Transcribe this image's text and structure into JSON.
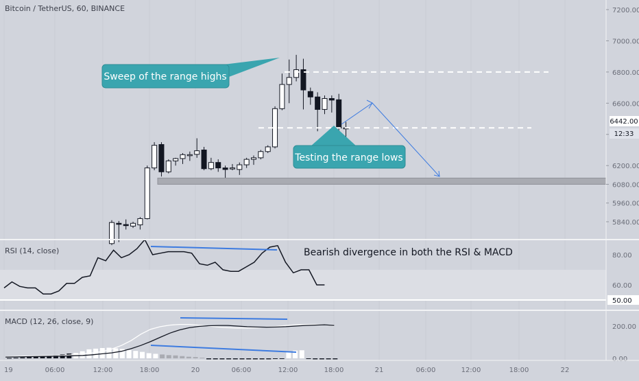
{
  "chart_data": [
    {
      "type": "candlestick",
      "title": "Bitcoin / TetherUS, 60, BINANCE",
      "ylim": [
        5700,
        7300
      ],
      "y_ticks": [
        "7200.00",
        "7000.00",
        "6800.00",
        "6600.00",
        "6400.00",
        "6200.00",
        "6080.00",
        "5960.00",
        "5840.00"
      ],
      "y_tick_values": [
        7200,
        7000,
        6800,
        6600,
        6400,
        6200,
        6080,
        5960,
        5840
      ],
      "x_ticks": [
        "19",
        "06:00",
        "12:00",
        "18:00",
        "20",
        "06:00",
        "12:00",
        "18:00",
        "21",
        "06:00",
        "12:00",
        "18:00",
        "22"
      ],
      "price_label": "6442.00",
      "countdown_label": "12:33",
      "candles": [
        {
          "o": 5700,
          "h": 5850,
          "l": 5690,
          "c": 5835
        },
        {
          "o": 5830,
          "h": 5845,
          "l": 5710,
          "c": 5825
        },
        {
          "o": 5822,
          "h": 5855,
          "l": 5790,
          "c": 5815
        },
        {
          "o": 5812,
          "h": 5840,
          "l": 5800,
          "c": 5830
        },
        {
          "o": 5820,
          "h": 5870,
          "l": 5790,
          "c": 5860
        },
        {
          "o": 5860,
          "h": 6200,
          "l": 5855,
          "c": 6185
        },
        {
          "o": 6185,
          "h": 6350,
          "l": 6170,
          "c": 6330
        },
        {
          "o": 6335,
          "h": 6350,
          "l": 6130,
          "c": 6160
        },
        {
          "o": 6160,
          "h": 6240,
          "l": 6150,
          "c": 6230
        },
        {
          "o": 6230,
          "h": 6250,
          "l": 6200,
          "c": 6245
        },
        {
          "o": 6245,
          "h": 6280,
          "l": 6210,
          "c": 6270
        },
        {
          "o": 6265,
          "h": 6290,
          "l": 6230,
          "c": 6270
        },
        {
          "o": 6272,
          "h": 6375,
          "l": 6250,
          "c": 6295
        },
        {
          "o": 6300,
          "h": 6320,
          "l": 6170,
          "c": 6180
        },
        {
          "o": 6180,
          "h": 6250,
          "l": 6170,
          "c": 6220
        },
        {
          "o": 6220,
          "h": 6240,
          "l": 6160,
          "c": 6185
        },
        {
          "o": 6185,
          "h": 6200,
          "l": 6120,
          "c": 6175
        },
        {
          "o": 6180,
          "h": 6210,
          "l": 6170,
          "c": 6185
        },
        {
          "o": 6175,
          "h": 6220,
          "l": 6140,
          "c": 6205
        },
        {
          "o": 6205,
          "h": 6250,
          "l": 6185,
          "c": 6240
        },
        {
          "o": 6240,
          "h": 6265,
          "l": 6205,
          "c": 6250
        },
        {
          "o": 6250,
          "h": 6300,
          "l": 6240,
          "c": 6290
        },
        {
          "o": 6290,
          "h": 6330,
          "l": 6280,
          "c": 6320
        },
        {
          "o": 6320,
          "h": 6580,
          "l": 6310,
          "c": 6565
        },
        {
          "o": 6565,
          "h": 6790,
          "l": 6555,
          "c": 6720
        },
        {
          "o": 6720,
          "h": 6880,
          "l": 6600,
          "c": 6765
        },
        {
          "o": 6765,
          "h": 6910,
          "l": 6740,
          "c": 6815
        },
        {
          "o": 6815,
          "h": 6885,
          "l": 6560,
          "c": 6685
        },
        {
          "o": 6675,
          "h": 6700,
          "l": 6590,
          "c": 6640
        },
        {
          "o": 6640,
          "h": 6670,
          "l": 6420,
          "c": 6560
        },
        {
          "o": 6560,
          "h": 6650,
          "l": 6530,
          "c": 6630
        },
        {
          "o": 6630,
          "h": 6650,
          "l": 6540,
          "c": 6620
        },
        {
          "o": 6622,
          "h": 6660,
          "l": 6400,
          "c": 6440
        },
        {
          "o": 6442,
          "h": 6480,
          "l": 6380,
          "c": 6442
        }
      ],
      "range_zone": {
        "from": 6080,
        "to": 6120
      },
      "levels": [
        6800,
        6442
      ],
      "annotations": [
        "Sweep of the range highs",
        "Testing the range lows"
      ]
    },
    {
      "type": "line",
      "title": "RSI (14, close)",
      "ylim": [
        40,
        100
      ],
      "y_ticks": [
        "80.00",
        "60.00",
        "50.00"
      ],
      "series": [
        {
          "values": [
            58,
            62,
            59,
            58,
            58,
            54,
            54,
            56,
            61,
            61,
            65,
            66,
            78,
            76,
            83,
            78,
            80,
            84,
            90,
            80,
            81,
            82,
            82,
            82,
            81,
            74,
            73,
            75,
            70,
            69,
            69,
            72,
            75,
            81,
            85,
            86,
            75,
            68,
            70,
            70,
            60,
            60
          ]
        }
      ],
      "annotation": "Bearish divergence in both the RSI & MACD"
    },
    {
      "type": "bar",
      "title": "MACD (12, 26, close, 9)",
      "ylim": [
        -10,
        240
      ],
      "y_ticks": [
        "200.00",
        "0.00"
      ],
      "series": [
        {
          "values": [
            2,
            4,
            6,
            8,
            10,
            12,
            16,
            20,
            24,
            30,
            34,
            44,
            56,
            60,
            64,
            66,
            62,
            58,
            52,
            46,
            40,
            32,
            28,
            24,
            20,
            18,
            14,
            10,
            8,
            4,
            -6,
            -6,
            -6,
            -6,
            -6,
            -6,
            -6,
            -6,
            -6,
            -6,
            -4,
            -2,
            38,
            48,
            50,
            -4,
            -6,
            -6,
            -6,
            -6
          ]
        },
        {
          "values": [
            10,
            12,
            14,
            15,
            16,
            16,
            18,
            22,
            28,
            34,
            42,
            58,
            80,
            110,
            150,
            180,
            196,
            206,
            210,
            210,
            206,
            200,
            194,
            190,
            188,
            188,
            190,
            194,
            198,
            204,
            208,
            210,
            210,
            208,
            200
          ]
        },
        {
          "values": [
            8,
            9,
            10,
            11,
            12,
            13,
            14,
            16,
            18,
            22,
            28,
            34,
            44,
            60,
            80,
            104,
            130,
            156,
            176,
            190,
            198,
            202,
            204,
            204,
            200,
            196,
            194,
            193,
            194,
            196,
            200,
            204,
            206,
            208,
            204
          ]
        }
      ]
    }
  ]
}
